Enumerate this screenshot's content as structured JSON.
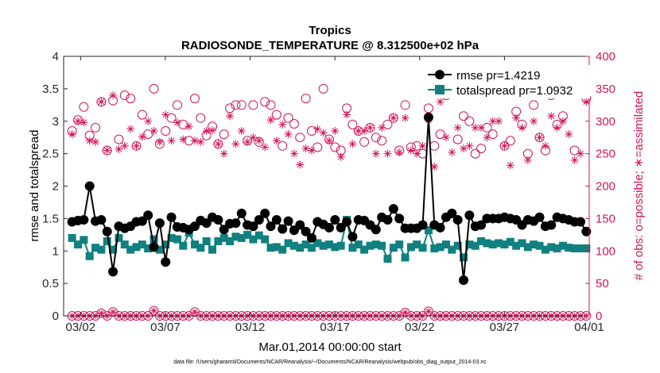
{
  "chart_data": {
    "type": "line",
    "title": "Tropics",
    "subtitle": "RADIOSONDE_TEMPERATURE @ 8.312500e+02 hPa",
    "xlabel": "Mar.01,2014 00:00:00 start",
    "ylabel_left": "rmse and totalspread",
    "ylabel_right": "# of obs: o=possible; ∗=assimilated",
    "footer": "data file: /Users/gharamti/Documents/NCAR/Reanalysis/~/Documents/NCAR/Reanalysis/webpub/obs_diag_output_2014-03.nc",
    "xlim": [
      1,
      32
    ],
    "ylim_left": [
      0,
      4
    ],
    "ylim_right": [
      0,
      400
    ],
    "x_ticks": [
      {
        "x": 2,
        "label": "03/02"
      },
      {
        "x": 7,
        "label": "03/07"
      },
      {
        "x": 12,
        "label": "03/12"
      },
      {
        "x": 17,
        "label": "03/17"
      },
      {
        "x": 22,
        "label": "03/22"
      },
      {
        "x": 27,
        "label": "03/27"
      },
      {
        "x": 32,
        "label": "04/01"
      }
    ],
    "y_ticks_left": [
      "0",
      "0.5",
      "1",
      "1.5",
      "2",
      "2.5",
      "3",
      "3.5",
      "4"
    ],
    "y_ticks_right": [
      "0",
      "50",
      "100",
      "150",
      "200",
      "250",
      "300",
      "350",
      "400"
    ],
    "legend_position": "top-right",
    "colors": {
      "rmse": "#000000",
      "spread": "#118080",
      "obs": "#d3145a",
      "axis": "#262626"
    },
    "series": [
      {
        "name": "rmse pr=1.4219",
        "axis": "left",
        "marker": "circle",
        "values": [
          1.45,
          1.47,
          1.48,
          2.0,
          1.46,
          1.48,
          1.3,
          0.68,
          1.38,
          1.35,
          1.38,
          1.45,
          1.46,
          1.55,
          1.06,
          1.43,
          0.83,
          1.52,
          1.37,
          1.36,
          1.33,
          1.38,
          1.47,
          1.43,
          1.52,
          1.48,
          1.33,
          1.42,
          1.43,
          1.58,
          1.4,
          1.38,
          1.48,
          1.58,
          1.38,
          1.48,
          1.34,
          1.46,
          1.32,
          1.4,
          1.3,
          1.2,
          1.45,
          1.41,
          1.36,
          1.48,
          1.36,
          1.45,
          1.22,
          1.48,
          1.47,
          1.4,
          1.33,
          1.52,
          1.48,
          1.65,
          1.5,
          1.35,
          1.35,
          1.35,
          1.4,
          3.06,
          1.4,
          1.36,
          1.52,
          1.58,
          1.48,
          0.55,
          1.55,
          1.38,
          1.4,
          1.5,
          1.5,
          1.5,
          1.52,
          1.5,
          1.48,
          1.4,
          1.48,
          1.46,
          1.52,
          1.38,
          1.4,
          1.52,
          1.5,
          1.48,
          1.45,
          1.45,
          1.3
        ]
      },
      {
        "name": "totalspread pr=1.0932",
        "axis": "left",
        "marker": "square",
        "values": [
          1.2,
          1.1,
          1.17,
          0.92,
          1.05,
          1.02,
          1.15,
          1.02,
          1.2,
          1.1,
          1.02,
          1.06,
          1.1,
          1.04,
          1.18,
          1.02,
          1.1,
          1.2,
          1.18,
          1.08,
          1.28,
          1.1,
          1.05,
          1.15,
          1.02,
          1.15,
          1.2,
          1.15,
          1.22,
          1.2,
          1.25,
          1.18,
          1.24,
          1.18,
          1.05,
          1.06,
          1.02,
          1.12,
          1.08,
          1.05,
          1.1,
          1.05,
          1.12,
          1.08,
          1.1,
          1.06,
          1.08,
          1.48,
          1.05,
          1.1,
          1.02,
          1.08,
          1.1,
          1.08,
          0.88,
          1.05,
          1.1,
          0.9,
          1.06,
          1.1,
          1.05,
          1.32,
          1.04,
          1.06,
          1.1,
          1.02,
          1.08,
          0.9,
          1.1,
          1.08,
          1.15,
          1.12,
          1.1,
          1.12,
          1.1,
          1.14,
          1.08,
          1.12,
          1.06,
          1.1,
          1.08,
          1.02,
          1.06,
          1.04,
          1.08,
          1.05,
          1.04,
          1.04,
          1.04
        ]
      },
      {
        "name": "possible observations",
        "axis": "right",
        "marker": "open-circle",
        "values": [
          285,
          302,
          322,
          278,
          290,
          330,
          255,
          332,
          272,
          340,
          335,
          262,
          310,
          280,
          350,
          265,
          285,
          305,
          325,
          295,
          270,
          335,
          305,
          278,
          292,
          265,
          280,
          320,
          325,
          325,
          270,
          325,
          268,
          330,
          325,
          310,
          262,
          305,
          296,
          275,
          335,
          285,
          260,
          350,
          272,
          260,
          255,
          320,
          295,
          285,
          268,
          290,
          275,
          270,
          295,
          305,
          255,
          325,
          260,
          262,
          250,
          320,
          262,
          280,
          340,
          355,
          272,
          308,
          300,
          250,
          258,
          290,
          280,
          350,
          262,
          270,
          315,
          295,
          250,
          325,
          275,
          255,
          340,
          295,
          308,
          348,
          255,
          350,
          335
        ]
      },
      {
        "name": "assimilated observations",
        "axis": "right",
        "marker": "asterisk",
        "values": [
          280,
          300,
          298,
          270,
          268,
          330,
          255,
          340,
          257,
          262,
          288,
          262,
          276,
          300,
          285,
          268,
          310,
          270,
          298,
          272,
          292,
          270,
          268,
          285,
          286,
          265,
          250,
          308,
          265,
          285,
          268,
          275,
          270,
          260,
          302,
          270,
          295,
          280,
          250,
          233,
          258,
          255,
          288,
          282,
          270,
          285,
          245,
          310,
          265,
          285,
          285,
          290,
          250,
          290,
          250,
          305,
          252,
          305,
          255,
          250,
          262,
          302,
          230,
          330,
          275,
          252,
          290,
          258,
          262,
          290,
          290,
          275,
          300,
          300,
          262,
          232,
          305,
          290,
          240,
          300,
          275,
          262,
          308,
          290,
          300,
          280,
          240,
          250,
          330
        ]
      }
    ],
    "zero_row": {
      "axis": "right",
      "values_possible": [
        0,
        0,
        0,
        0,
        0,
        0,
        0,
        0,
        0,
        0,
        0,
        0,
        0,
        0,
        0,
        0,
        0,
        0,
        0,
        0,
        0,
        0,
        0,
        0,
        0,
        0,
        0,
        0,
        0,
        0,
        0,
        0,
        0,
        0,
        0,
        0,
        0,
        0,
        0,
        0,
        0,
        0,
        0,
        0,
        0,
        0,
        0,
        0,
        0,
        0,
        0,
        0,
        0,
        0,
        0,
        0,
        0,
        0,
        0,
        0,
        0,
        0,
        0,
        0,
        0,
        0,
        0,
        0,
        0,
        0,
        0,
        0,
        0,
        0,
        0,
        0,
        0,
        0,
        0,
        0,
        0,
        0,
        0,
        0,
        0,
        0,
        0,
        0,
        0
      ],
      "raised": [
        {
          "i": 5,
          "v": 4
        },
        {
          "i": 7,
          "v": 6
        },
        {
          "i": 14,
          "v": 8
        },
        {
          "i": 21,
          "v": 6
        },
        {
          "i": 57,
          "v": 5
        },
        {
          "i": 61,
          "v": 7
        }
      ]
    }
  }
}
